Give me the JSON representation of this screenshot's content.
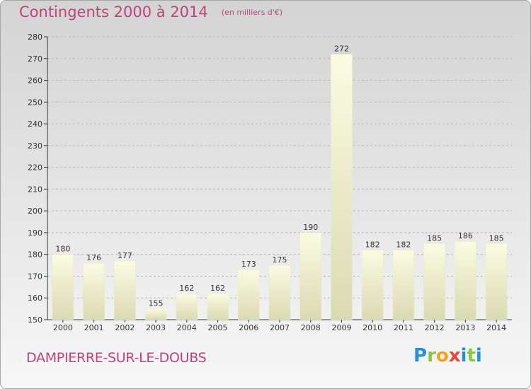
{
  "header": {
    "title": "Contingents 2000 à 2014",
    "subtitle": "(en milliers d'€)"
  },
  "footer": {
    "commune": "DAMPIERRE-SUR-LE-DOUBS",
    "logo_text": "Proxiti"
  },
  "chart_data": {
    "type": "bar",
    "title": "Contingents 2000 à 2014",
    "subtitle": "(en milliers d'€)",
    "categories": [
      "2000",
      "2001",
      "2002",
      "2003",
      "2004",
      "2005",
      "2006",
      "2007",
      "2008",
      "2009",
      "2010",
      "2011",
      "2012",
      "2013",
      "2014"
    ],
    "values": [
      180,
      176,
      177,
      155,
      162,
      162,
      173,
      175,
      190,
      272,
      182,
      182,
      185,
      186,
      185
    ],
    "ylim": [
      150,
      280
    ],
    "yticks": [
      150,
      160,
      170,
      180,
      190,
      200,
      210,
      220,
      230,
      240,
      250,
      260,
      270,
      280
    ],
    "grid": true,
    "data_labels": true,
    "colors": {
      "bar_top": "#fafae0",
      "bar_bottom": "#dcdcb4",
      "title": "#c0437a"
    }
  }
}
